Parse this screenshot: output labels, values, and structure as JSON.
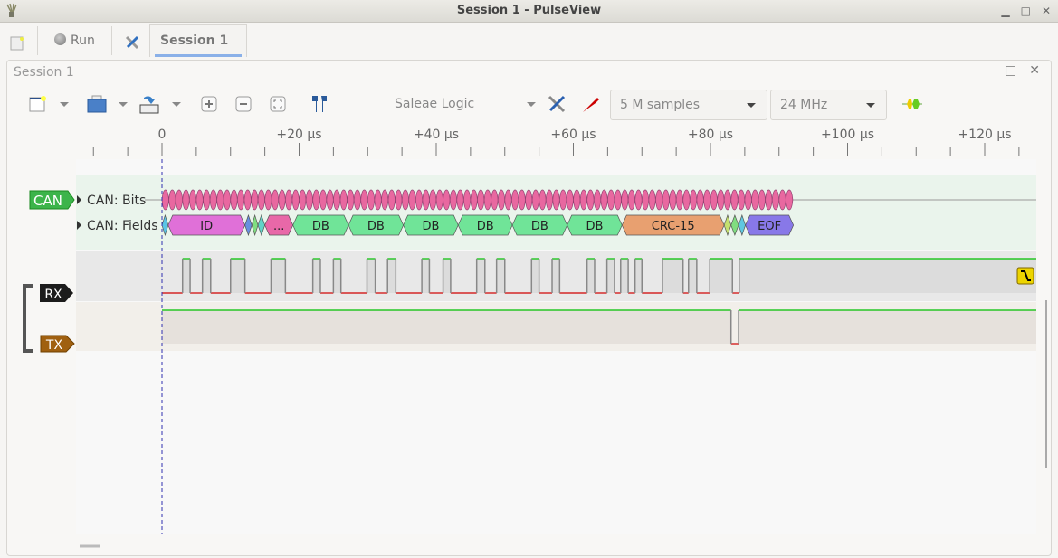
{
  "window": {
    "title": "Session 1 - PulseView",
    "minimize": "▁",
    "maximize": "□",
    "close": "✕"
  },
  "tabs": {
    "run_label": "Run",
    "session_tab": "Session 1",
    "close": "✕"
  },
  "session": {
    "title": "Session 1",
    "float": "□",
    "close": "✕"
  },
  "toolbar": {
    "device": "Saleae Logic",
    "samples": "5 M samples",
    "samplerate": "24 MHz"
  },
  "ruler": {
    "labels": [
      {
        "t": 0,
        "text": "0"
      },
      {
        "t": 20,
        "text": "+20 µs"
      },
      {
        "t": 40,
        "text": "+40 µs"
      },
      {
        "t": 60,
        "text": "+60 µs"
      },
      {
        "t": 80,
        "text": "+80 µs"
      },
      {
        "t": 100,
        "text": "+100 µs"
      },
      {
        "t": 120,
        "text": "+120 µs"
      }
    ],
    "minor_step_us": 5
  },
  "decoder": {
    "name": "CAN",
    "color": "#3cb44a",
    "rows": [
      "CAN: Bits",
      "CAN: Fields"
    ],
    "bit_count": 92,
    "bit_color": "#e868a0",
    "fields": [
      {
        "s": 0,
        "e": 0.9,
        "text": "",
        "color": "#5bc4e4"
      },
      {
        "s": 0.9,
        "e": 12.1,
        "text": "ID",
        "color": "#e070d8"
      },
      {
        "s": 12.1,
        "e": 13.1,
        "text": "",
        "color": "#6890e0"
      },
      {
        "s": 13.1,
        "e": 14.0,
        "text": "",
        "color": "#80dd80"
      },
      {
        "s": 14.0,
        "e": 15.0,
        "text": "",
        "color": "#60d4c8"
      },
      {
        "s": 15.0,
        "e": 19.1,
        "text": "...",
        "color": "#e868a8"
      },
      {
        "s": 19.1,
        "e": 27.2,
        "text": "DB",
        "color": "#70e498"
      },
      {
        "s": 27.2,
        "e": 35.2,
        "text": "DB",
        "color": "#70e498"
      },
      {
        "s": 35.2,
        "e": 43.2,
        "text": "DB",
        "color": "#70e498"
      },
      {
        "s": 43.2,
        "e": 51.1,
        "text": "DB",
        "color": "#70e498"
      },
      {
        "s": 51.1,
        "e": 59.1,
        "text": "DB",
        "color": "#70e498"
      },
      {
        "s": 59.1,
        "e": 67.1,
        "text": "DB",
        "color": "#70e498"
      },
      {
        "s": 67.1,
        "e": 82.0,
        "text": "CRC-15",
        "color": "#e8a070"
      },
      {
        "s": 82.0,
        "e": 83.0,
        "text": "",
        "color": "#c4e070"
      },
      {
        "s": 83.0,
        "e": 84.1,
        "text": "",
        "color": "#80dd80"
      },
      {
        "s": 84.1,
        "e": 85.1,
        "text": "",
        "color": "#60c8e0"
      },
      {
        "s": 85.1,
        "e": 92.1,
        "text": "EOF",
        "color": "#8878e8"
      }
    ]
  },
  "channels": [
    {
      "name": "RX",
      "color": "#1c1c1c",
      "initial": 0,
      "high_pulses": [
        [
          3.0,
          4.1
        ],
        [
          5.9,
          7.1
        ],
        [
          10.0,
          12.1
        ],
        [
          15.9,
          18.0
        ],
        [
          22.0,
          23.1
        ],
        [
          25.0,
          26.1
        ],
        [
          29.9,
          31.1
        ],
        [
          32.9,
          34.1
        ],
        [
          37.9,
          39.0
        ],
        [
          41.0,
          42.1
        ],
        [
          45.9,
          47.1
        ],
        [
          48.8,
          50.0
        ],
        [
          53.9,
          55.0
        ],
        [
          56.9,
          58.0
        ],
        [
          62.0,
          63.1
        ],
        [
          64.9,
          66.0
        ],
        [
          66.9,
          68.0
        ],
        [
          69.0,
          70.0
        ],
        [
          73.0,
          76.0
        ],
        [
          76.8,
          78.0
        ],
        [
          79.9,
          83.2
        ],
        [
          84.2,
          130
        ]
      ],
      "trigger": "falling-edge"
    },
    {
      "name": "TX",
      "color": "#a06010",
      "initial": 1,
      "low_pulses": [
        [
          83.0,
          84.1
        ]
      ]
    }
  ],
  "colors": {
    "high": "#00c000",
    "low": "#d00000",
    "cursor": "#3030b0"
  }
}
